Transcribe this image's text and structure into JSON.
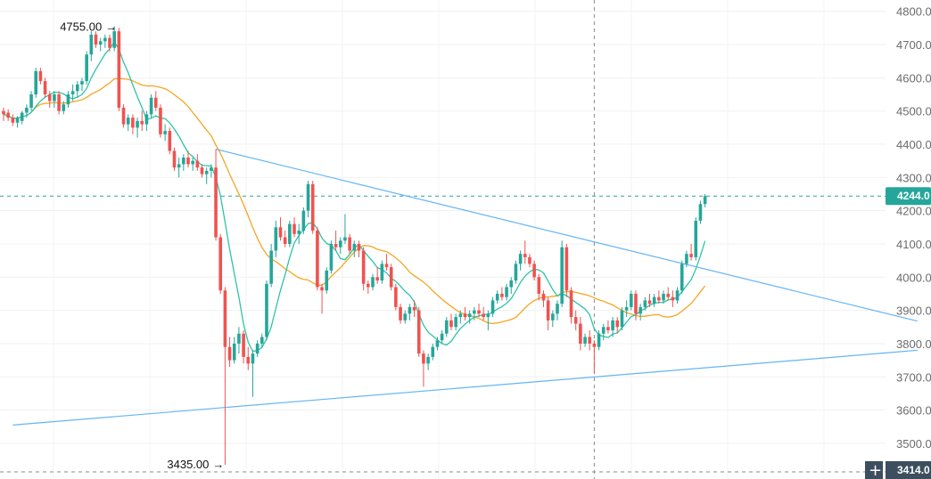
{
  "chart_data": {
    "type": "candlestick",
    "ylim": [
      3414,
      4810
    ],
    "y_ticks": [
      "4800.0",
      "4700.0",
      "4600.0",
      "4500.0",
      "4400.0",
      "4300.0",
      "4200.0",
      "4100.0",
      "4000.0",
      "3900.0",
      "3800.0",
      "3700.0",
      "3600.0",
      "3500.0"
    ],
    "y_tick_values": [
      4800,
      4700,
      4600,
      4500,
      4400,
      4300,
      4200,
      4100,
      4000,
      3900,
      3800,
      3700,
      3600,
      3500
    ],
    "last_price_label": "4244.0",
    "last_price": 4244,
    "crosshair_price_label": "3414.0",
    "crosshair_price": 3414,
    "crosshair_bar": 128,
    "annotations": {
      "high_label": "4755.00",
      "high_value": 4755,
      "high_bar": 24,
      "low_label": "3435.00",
      "low_value": 3435,
      "low_bar": 48
    },
    "trendlines": [
      {
        "from": [
          46,
          4385
        ],
        "to": [
          198,
          3868
        ]
      },
      {
        "from": [
          2,
          3555
        ],
        "to": [
          198,
          3780
        ]
      }
    ],
    "candles": [
      [
        4500,
        4510,
        4470,
        4490
      ],
      [
        4495,
        4505,
        4470,
        4480
      ],
      [
        4480,
        4490,
        4455,
        4465
      ],
      [
        4465,
        4485,
        4450,
        4480
      ],
      [
        4470,
        4500,
        4460,
        4495
      ],
      [
        4495,
        4520,
        4480,
        4510
      ],
      [
        4510,
        4560,
        4500,
        4550
      ],
      [
        4550,
        4630,
        4540,
        4620
      ],
      [
        4620,
        4630,
        4580,
        4590
      ],
      [
        4590,
        4600,
        4540,
        4550
      ],
      [
        4550,
        4560,
        4510,
        4530
      ],
      [
        4530,
        4560,
        4510,
        4550
      ],
      [
        4550,
        4560,
        4490,
        4500
      ],
      [
        4500,
        4530,
        4490,
        4520
      ],
      [
        4520,
        4560,
        4510,
        4550
      ],
      [
        4550,
        4580,
        4530,
        4560
      ],
      [
        4560,
        4590,
        4540,
        4580
      ],
      [
        4580,
        4600,
        4560,
        4590
      ],
      [
        4590,
        4680,
        4580,
        4670
      ],
      [
        4670,
        4740,
        4650,
        4730
      ],
      [
        4730,
        4740,
        4690,
        4700
      ],
      [
        4700,
        4720,
        4680,
        4710
      ],
      [
        4710,
        4730,
        4690,
        4720
      ],
      [
        4720,
        4730,
        4680,
        4690
      ],
      [
        4690,
        4755,
        4680,
        4740
      ],
      [
        4740,
        4750,
        4500,
        4510
      ],
      [
        4510,
        4520,
        4450,
        4460
      ],
      [
        4460,
        4490,
        4440,
        4480
      ],
      [
        4480,
        4490,
        4430,
        4450
      ],
      [
        4450,
        4480,
        4420,
        4470
      ],
      [
        4470,
        4500,
        4440,
        4460
      ],
      [
        4460,
        4500,
        4440,
        4490
      ],
      [
        4490,
        4550,
        4480,
        4540
      ],
      [
        4540,
        4560,
        4500,
        4510
      ],
      [
        4510,
        4520,
        4420,
        4430
      ],
      [
        4430,
        4460,
        4410,
        4440
      ],
      [
        4440,
        4450,
        4370,
        4380
      ],
      [
        4380,
        4390,
        4320,
        4330
      ],
      [
        4330,
        4360,
        4300,
        4340
      ],
      [
        4340,
        4370,
        4320,
        4360
      ],
      [
        4360,
        4380,
        4330,
        4340
      ],
      [
        4340,
        4360,
        4320,
        4350
      ],
      [
        4350,
        4370,
        4320,
        4330
      ],
      [
        4330,
        4340,
        4300,
        4310
      ],
      [
        4310,
        4330,
        4280,
        4320
      ],
      [
        4320,
        4340,
        4300,
        4330
      ],
      [
        4330,
        4385,
        4110,
        4120
      ],
      [
        4120,
        4130,
        3950,
        3960
      ],
      [
        3960,
        3970,
        3435,
        3790
      ],
      [
        3790,
        3820,
        3730,
        3750
      ],
      [
        3750,
        3820,
        3740,
        3800
      ],
      [
        3800,
        3850,
        3770,
        3830
      ],
      [
        3830,
        3840,
        3740,
        3760
      ],
      [
        3760,
        3790,
        3720,
        3740
      ],
      [
        3740,
        3780,
        3640,
        3770
      ],
      [
        3770,
        3810,
        3760,
        3800
      ],
      [
        3800,
        3830,
        3790,
        3820
      ],
      [
        3820,
        3990,
        3810,
        3980
      ],
      [
        3980,
        4100,
        3970,
        4080
      ],
      [
        4080,
        4170,
        4060,
        4150
      ],
      [
        4150,
        4180,
        4110,
        4120
      ],
      [
        4120,
        4140,
        4090,
        4100
      ],
      [
        4100,
        4170,
        4090,
        4160
      ],
      [
        4160,
        4180,
        4120,
        4130
      ],
      [
        4130,
        4160,
        4100,
        4140
      ],
      [
        4140,
        4210,
        4130,
        4200
      ],
      [
        4200,
        4290,
        4180,
        4280
      ],
      [
        4280,
        4290,
        4130,
        4140
      ],
      [
        4140,
        4150,
        3960,
        3970
      ],
      [
        3970,
        3980,
        3890,
        3960
      ],
      [
        3960,
        4030,
        3950,
        4020
      ],
      [
        4020,
        4110,
        4010,
        4100
      ],
      [
        4100,
        4140,
        4080,
        4090
      ],
      [
        4090,
        4120,
        4070,
        4110
      ],
      [
        4110,
        4190,
        4100,
        4120
      ],
      [
        4120,
        4130,
        4070,
        4080
      ],
      [
        4080,
        4110,
        4060,
        4100
      ],
      [
        4100,
        4110,
        4060,
        4080
      ],
      [
        4080,
        4090,
        3960,
        3980
      ],
      [
        3980,
        3990,
        3950,
        3970
      ],
      [
        3970,
        4010,
        3960,
        4000
      ],
      [
        4000,
        4030,
        3980,
        3990
      ],
      [
        3990,
        4050,
        3980,
        4040
      ],
      [
        4040,
        4070,
        4020,
        4030
      ],
      [
        4030,
        4040,
        3960,
        3970
      ],
      [
        3970,
        3980,
        3900,
        3910
      ],
      [
        3910,
        3920,
        3860,
        3870
      ],
      [
        3870,
        3900,
        3860,
        3890
      ],
      [
        3890,
        3920,
        3870,
        3910
      ],
      [
        3910,
        3930,
        3880,
        3900
      ],
      [
        3900,
        3910,
        3760,
        3770
      ],
      [
        3770,
        3780,
        3670,
        3740
      ],
      [
        3740,
        3770,
        3720,
        3760
      ],
      [
        3760,
        3800,
        3750,
        3790
      ],
      [
        3790,
        3820,
        3780,
        3810
      ],
      [
        3810,
        3840,
        3800,
        3830
      ],
      [
        3830,
        3880,
        3820,
        3870
      ],
      [
        3870,
        3890,
        3840,
        3850
      ],
      [
        3850,
        3890,
        3840,
        3880
      ],
      [
        3880,
        3900,
        3860,
        3890
      ],
      [
        3890,
        3910,
        3870,
        3880
      ],
      [
        3880,
        3900,
        3860,
        3890
      ],
      [
        3890,
        3910,
        3870,
        3900
      ],
      [
        3900,
        3920,
        3880,
        3890
      ],
      [
        3890,
        3910,
        3870,
        3880
      ],
      [
        3880,
        3900,
        3840,
        3890
      ],
      [
        3890,
        3940,
        3880,
        3930
      ],
      [
        3930,
        3960,
        3920,
        3950
      ],
      [
        3950,
        3970,
        3930,
        3940
      ],
      [
        3940,
        3980,
        3930,
        3970
      ],
      [
        3970,
        4000,
        3950,
        3990
      ],
      [
        3990,
        4050,
        3980,
        4040
      ],
      [
        4040,
        4080,
        4020,
        4070
      ],
      [
        4070,
        4110,
        4040,
        4060
      ],
      [
        4060,
        4070,
        4030,
        4040
      ],
      [
        4040,
        4050,
        3990,
        4000
      ],
      [
        4000,
        4010,
        3930,
        3950
      ],
      [
        3950,
        3960,
        3910,
        3930
      ],
      [
        3930,
        3940,
        3840,
        3870
      ],
      [
        3870,
        3900,
        3850,
        3890
      ],
      [
        3890,
        3930,
        3870,
        3920
      ],
      [
        3920,
        4110,
        3910,
        4090
      ],
      [
        4090,
        4100,
        3940,
        3960
      ],
      [
        3960,
        3970,
        3860,
        3880
      ],
      [
        3880,
        3900,
        3840,
        3860
      ],
      [
        3860,
        3880,
        3780,
        3800
      ],
      [
        3800,
        3830,
        3790,
        3820
      ],
      [
        3820,
        3840,
        3780,
        3800
      ],
      [
        3800,
        3810,
        3710,
        3790
      ],
      [
        3790,
        3840,
        3780,
        3830
      ],
      [
        3830,
        3860,
        3810,
        3850
      ],
      [
        3850,
        3870,
        3830,
        3840
      ],
      [
        3840,
        3880,
        3820,
        3870
      ],
      [
        3870,
        3880,
        3830,
        3850
      ],
      [
        3850,
        3910,
        3840,
        3900
      ],
      [
        3900,
        3930,
        3880,
        3910
      ],
      [
        3910,
        3960,
        3900,
        3950
      ],
      [
        3950,
        3960,
        3870,
        3890
      ],
      [
        3890,
        3920,
        3870,
        3910
      ],
      [
        3910,
        3940,
        3900,
        3930
      ],
      [
        3930,
        3950,
        3910,
        3920
      ],
      [
        3920,
        3950,
        3910,
        3940
      ],
      [
        3940,
        3960,
        3920,
        3930
      ],
      [
        3930,
        3960,
        3920,
        3950
      ],
      [
        3950,
        3970,
        3930,
        3940
      ],
      [
        3940,
        3960,
        3910,
        3930
      ],
      [
        3930,
        3970,
        3920,
        3960
      ],
      [
        3960,
        4050,
        3950,
        4040
      ],
      [
        4040,
        4080,
        4030,
        4070
      ],
      [
        4070,
        4100,
        4050,
        4060
      ],
      [
        4060,
        4180,
        4050,
        4170
      ],
      [
        4170,
        4230,
        4160,
        4220
      ],
      [
        4220,
        4250,
        4210,
        4244
      ]
    ]
  }
}
